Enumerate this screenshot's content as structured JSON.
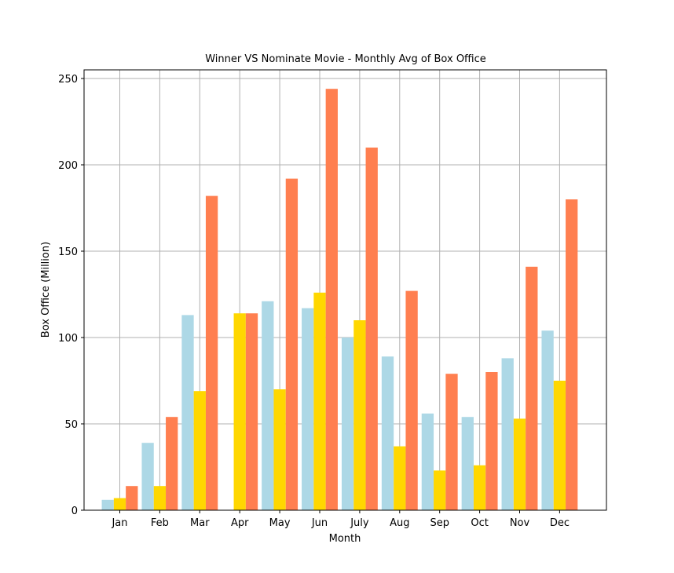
{
  "chart_data": {
    "type": "bar",
    "title": "Winner VS Nominate Movie - Monthly Avg of Box Office",
    "xlabel": "Month",
    "ylabel": "Box Office (Million)",
    "categories": [
      "Jan",
      "Feb",
      "Mar",
      "Apr",
      "May",
      "Jun",
      "July",
      "Aug",
      "Sep",
      "Oct",
      "Nov",
      "Dec"
    ],
    "ylim": [
      0,
      255
    ],
    "yticks": [
      0,
      50,
      100,
      150,
      200,
      250
    ],
    "grid": true,
    "legend": "none",
    "series": [
      {
        "color": "#add8e6",
        "values": [
          6,
          39,
          113,
          0,
          121,
          117,
          100,
          89,
          56,
          54,
          88,
          104
        ]
      },
      {
        "color": "#ffd700",
        "values": [
          7,
          14,
          69,
          114,
          70,
          126,
          110,
          37,
          23,
          26,
          53,
          75
        ]
      },
      {
        "color": "#ff7f50",
        "values": [
          14,
          54,
          182,
          114,
          192,
          244,
          210,
          127,
          79,
          80,
          141,
          180
        ]
      }
    ]
  }
}
